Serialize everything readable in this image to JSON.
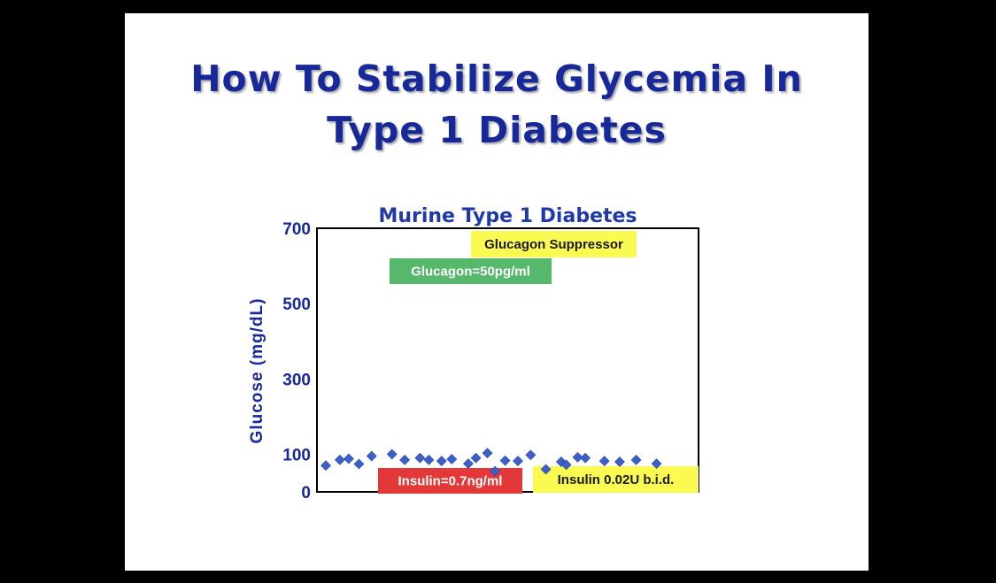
{
  "slide": {
    "title_line_1": "How To Stabilize Glycemia In",
    "title_line_2": "Type 1 Diabetes"
  },
  "colors": {
    "title": "#16289a",
    "marker": "#3d5fc8",
    "annotation_yellow": "#fafa50",
    "annotation_green": "#56b86a",
    "annotation_red": "#e23838"
  },
  "chart_data": {
    "type": "scatter",
    "title": "Murine Type 1 Diabetes",
    "xlabel": "",
    "ylabel": "Glucose (mg/dL)",
    "ylim": [
      0,
      700
    ],
    "yticks": [
      0,
      100,
      300,
      500,
      700
    ],
    "xlim": [
      0,
      30
    ],
    "grid": false,
    "marker": "diamond",
    "points": [
      {
        "x": 0.7,
        "y": 70
      },
      {
        "x": 1.8,
        "y": 85
      },
      {
        "x": 2.5,
        "y": 88
      },
      {
        "x": 3.3,
        "y": 74
      },
      {
        "x": 4.3,
        "y": 95
      },
      {
        "x": 5.9,
        "y": 100
      },
      {
        "x": 6.9,
        "y": 85
      },
      {
        "x": 8.1,
        "y": 90
      },
      {
        "x": 8.8,
        "y": 85
      },
      {
        "x": 9.8,
        "y": 82
      },
      {
        "x": 10.6,
        "y": 87
      },
      {
        "x": 11.9,
        "y": 75
      },
      {
        "x": 12.5,
        "y": 90
      },
      {
        "x": 13.4,
        "y": 103
      },
      {
        "x": 14.0,
        "y": 55
      },
      {
        "x": 14.8,
        "y": 83
      },
      {
        "x": 15.8,
        "y": 82
      },
      {
        "x": 16.8,
        "y": 98
      },
      {
        "x": 18.0,
        "y": 60
      },
      {
        "x": 19.2,
        "y": 80
      },
      {
        "x": 19.6,
        "y": 72
      },
      {
        "x": 20.5,
        "y": 92
      },
      {
        "x": 21.1,
        "y": 90
      },
      {
        "x": 22.6,
        "y": 82
      },
      {
        "x": 23.8,
        "y": 80
      },
      {
        "x": 25.1,
        "y": 85
      },
      {
        "x": 26.7,
        "y": 75
      }
    ],
    "annotations": [
      {
        "text": "Glucagon Suppressor",
        "color": "#fafa50",
        "text_color": "#1a1a1a"
      },
      {
        "text": "Glucagon=50pg/ml",
        "color": "#56b86a",
        "text_color": "#ffffff"
      },
      {
        "text": "Insulin=0.7ng/ml",
        "color": "#e23838",
        "text_color": "#ffffff"
      },
      {
        "text": "Insulin 0.02U b.i.d.",
        "color": "#fafa50",
        "text_color": "#1a1a1a"
      }
    ]
  }
}
